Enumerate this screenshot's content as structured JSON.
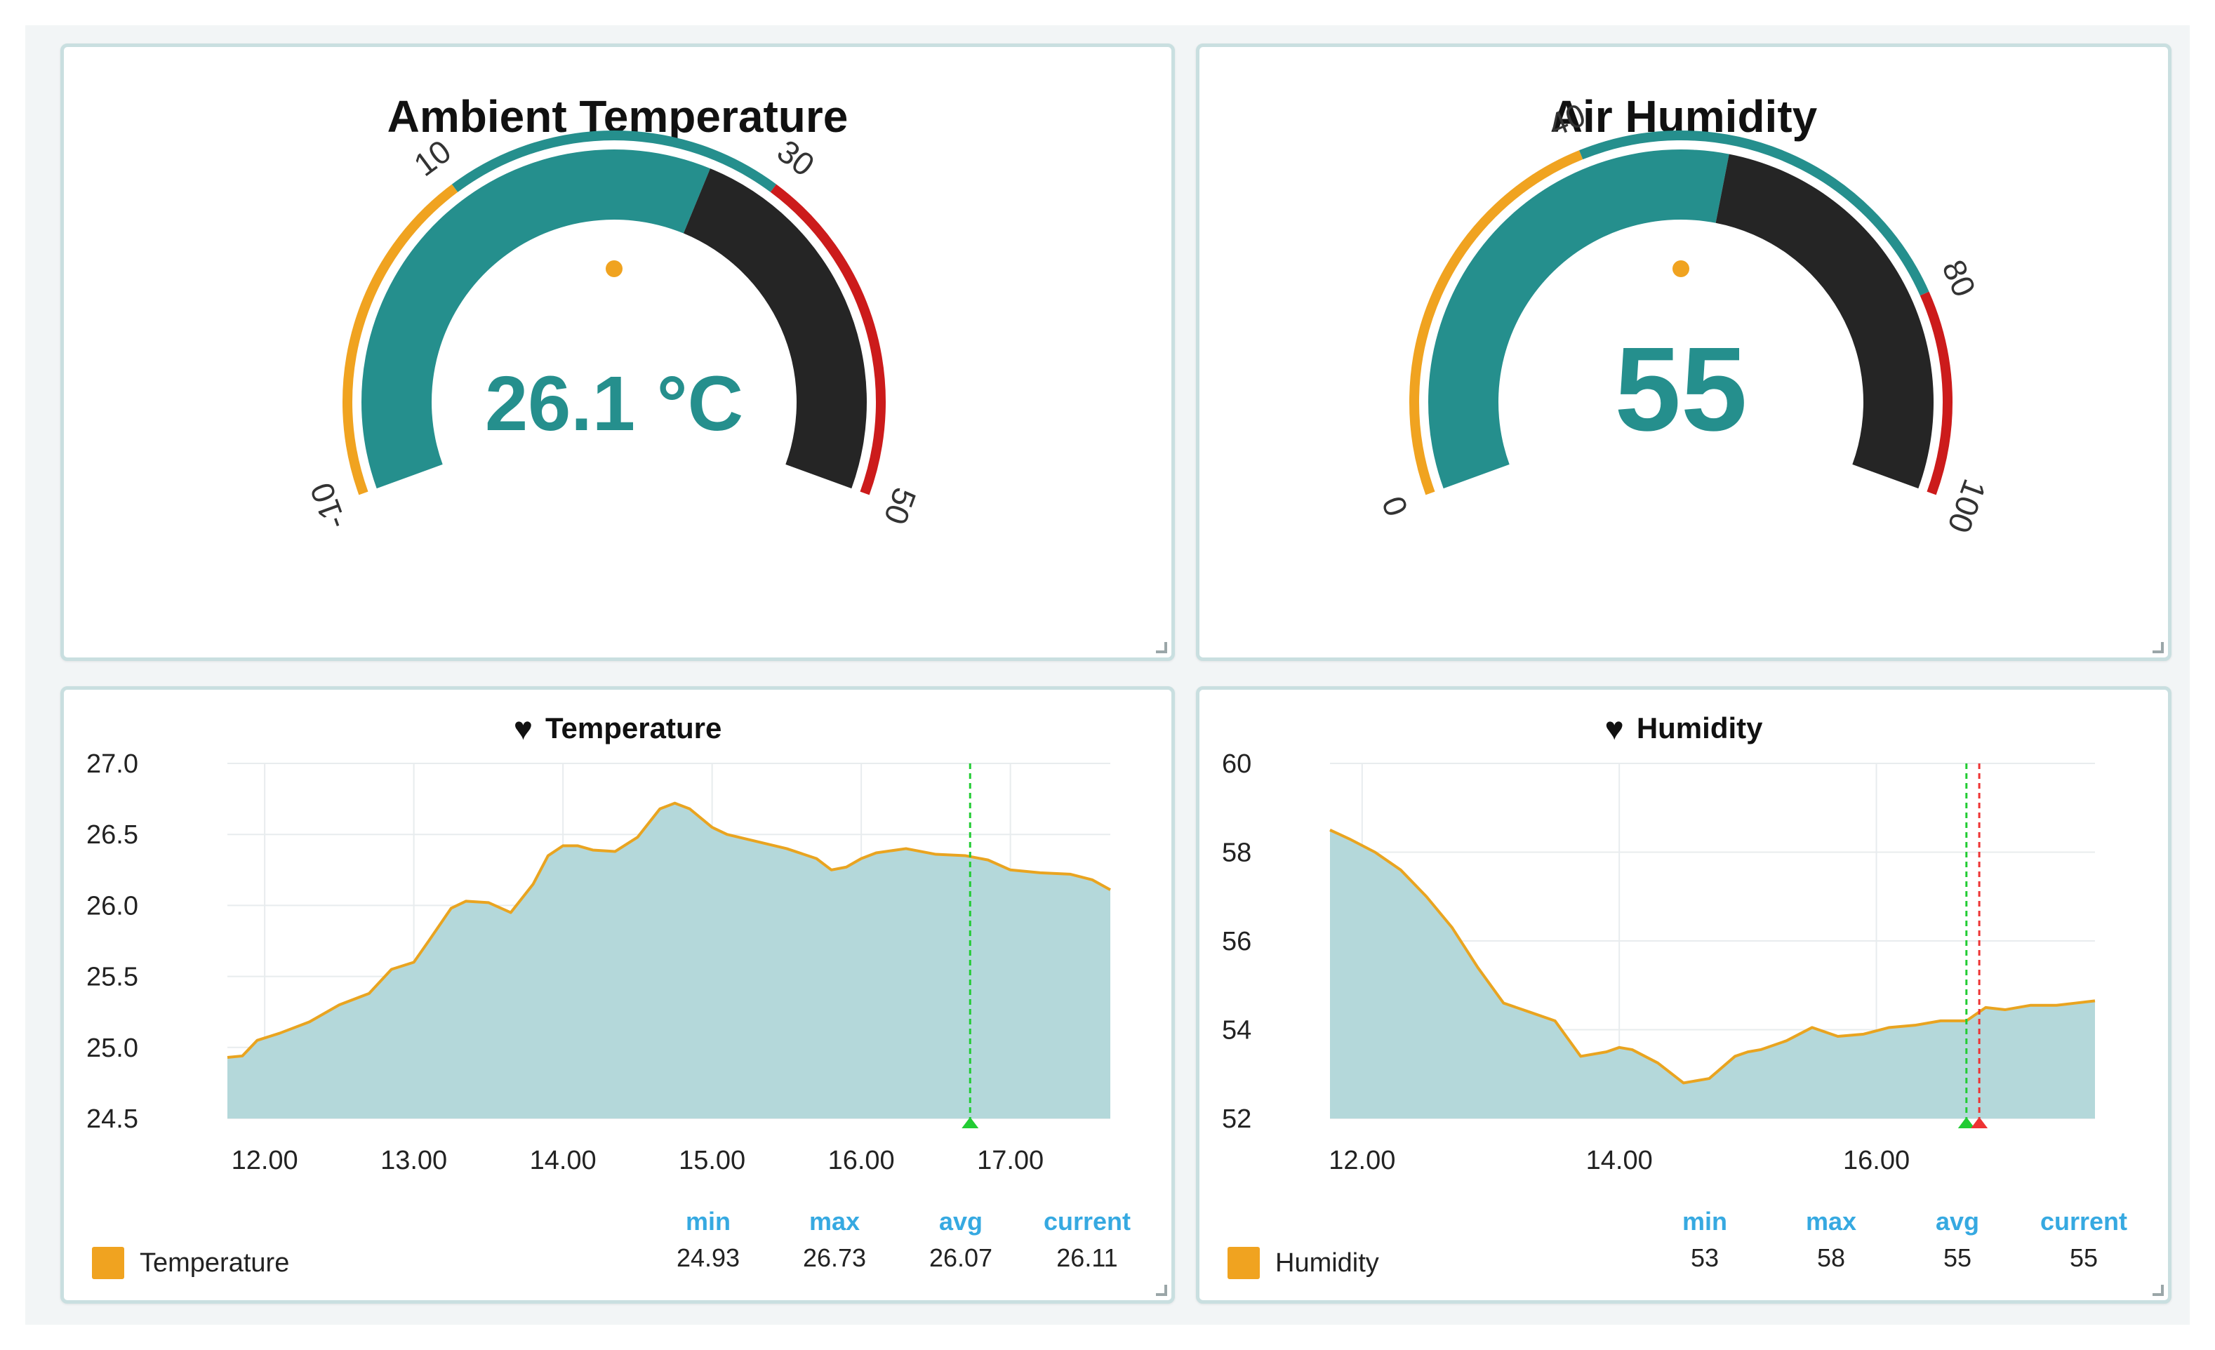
{
  "colors": {
    "teal": "#258f8d",
    "dark": "#252525",
    "orange": "#f0a320",
    "red": "#cc1b1b",
    "area_fill": "#b4d8da",
    "area_line": "#e9a420",
    "grid": "#e8ecee",
    "stat_header": "#36a9e1",
    "marker_green": "#22cc33",
    "marker_red": "#ee3333"
  },
  "temp_gauge": {
    "title": "Ambient Temperature",
    "value": 26.1,
    "value_text": "26.1 °C",
    "min": -10,
    "max": 50,
    "threshold_low": 10,
    "threshold_high": 30,
    "tick_labels": [
      "-10",
      "10",
      "30",
      "50"
    ]
  },
  "hum_gauge": {
    "title": "Air Humidity",
    "value": 55,
    "value_text": "55",
    "min": 0,
    "max": 100,
    "threshold_low": 40,
    "threshold_high": 80,
    "tick_labels": [
      "0",
      "40",
      "80",
      "100"
    ]
  },
  "temp_chart": {
    "title": "Temperature",
    "legend_label": "Temperature",
    "stats_headers": [
      "min",
      "max",
      "avg",
      "current"
    ],
    "stats_values": [
      "24.93",
      "26.73",
      "26.07",
      "26.11"
    ]
  },
  "hum_chart": {
    "title": "Humidity",
    "legend_label": "Humidity",
    "stats_headers": [
      "min",
      "max",
      "avg",
      "current"
    ],
    "stats_values": [
      "53",
      "58",
      "55",
      "55"
    ]
  },
  "chart_data": [
    {
      "type": "area",
      "title": "Temperature",
      "xlabel": "",
      "ylabel": "",
      "x_range": [
        11.75,
        17.67
      ],
      "ylim": [
        24.5,
        27.0
      ],
      "x_ticks": [
        12,
        13,
        14,
        15,
        16,
        17
      ],
      "x_tick_labels": [
        "12.00",
        "13.00",
        "14.00",
        "15.00",
        "16.00",
        "17.00"
      ],
      "y_ticks": [
        24.5,
        25.0,
        25.5,
        26.0,
        26.5,
        27.0
      ],
      "y_tick_labels": [
        "24.5",
        "25.0",
        "25.5",
        "26.0",
        "26.5",
        "27.0"
      ],
      "marker_green_x": 16.73,
      "series": [
        {
          "name": "Temperature",
          "x": [
            11.75,
            11.85,
            11.95,
            12.1,
            12.3,
            12.5,
            12.7,
            12.85,
            13.0,
            13.1,
            13.25,
            13.35,
            13.5,
            13.65,
            13.8,
            13.9,
            14.0,
            14.1,
            14.2,
            14.35,
            14.5,
            14.65,
            14.75,
            14.85,
            15.0,
            15.1,
            15.3,
            15.5,
            15.7,
            15.8,
            15.9,
            16.0,
            16.1,
            16.3,
            16.5,
            16.7,
            16.85,
            17.0,
            17.2,
            17.4,
            17.55,
            17.67
          ],
          "values": [
            24.93,
            24.94,
            25.05,
            25.1,
            25.18,
            25.3,
            25.38,
            25.55,
            25.6,
            25.75,
            25.98,
            26.03,
            26.02,
            25.95,
            26.15,
            26.35,
            26.42,
            26.42,
            26.39,
            26.38,
            26.48,
            26.68,
            26.72,
            26.68,
            26.55,
            26.5,
            26.45,
            26.4,
            26.33,
            26.25,
            26.27,
            26.33,
            26.37,
            26.4,
            26.36,
            26.35,
            26.32,
            26.25,
            26.23,
            26.22,
            26.18,
            26.11
          ]
        }
      ]
    },
    {
      "type": "area",
      "title": "Humidity",
      "xlabel": "",
      "ylabel": "",
      "x_range": [
        11.75,
        17.7
      ],
      "ylim": [
        52,
        60
      ],
      "x_ticks": [
        12,
        14,
        16
      ],
      "x_tick_labels": [
        "12.00",
        "14.00",
        "16.00"
      ],
      "y_ticks": [
        52,
        54,
        56,
        58,
        60
      ],
      "y_tick_labels": [
        "52",
        "54",
        "56",
        "58",
        "60"
      ],
      "marker_green_x": 16.7,
      "marker_red_x": 16.8,
      "series": [
        {
          "name": "Humidity",
          "x": [
            11.75,
            11.9,
            12.1,
            12.3,
            12.5,
            12.7,
            12.9,
            13.1,
            13.3,
            13.5,
            13.7,
            13.9,
            14.0,
            14.1,
            14.3,
            14.5,
            14.7,
            14.9,
            15.0,
            15.1,
            15.3,
            15.5,
            15.7,
            15.9,
            16.1,
            16.3,
            16.5,
            16.7,
            16.85,
            17.0,
            17.2,
            17.4,
            17.55,
            17.7
          ],
          "values": [
            58.5,
            58.3,
            58.0,
            57.6,
            57.0,
            56.3,
            55.4,
            54.6,
            54.4,
            54.2,
            53.4,
            53.5,
            53.6,
            53.55,
            53.25,
            52.8,
            52.9,
            53.4,
            53.5,
            53.55,
            53.75,
            54.05,
            53.85,
            53.9,
            54.05,
            54.1,
            54.2,
            54.2,
            54.5,
            54.45,
            54.55,
            54.55,
            54.6,
            54.65
          ]
        }
      ]
    }
  ]
}
